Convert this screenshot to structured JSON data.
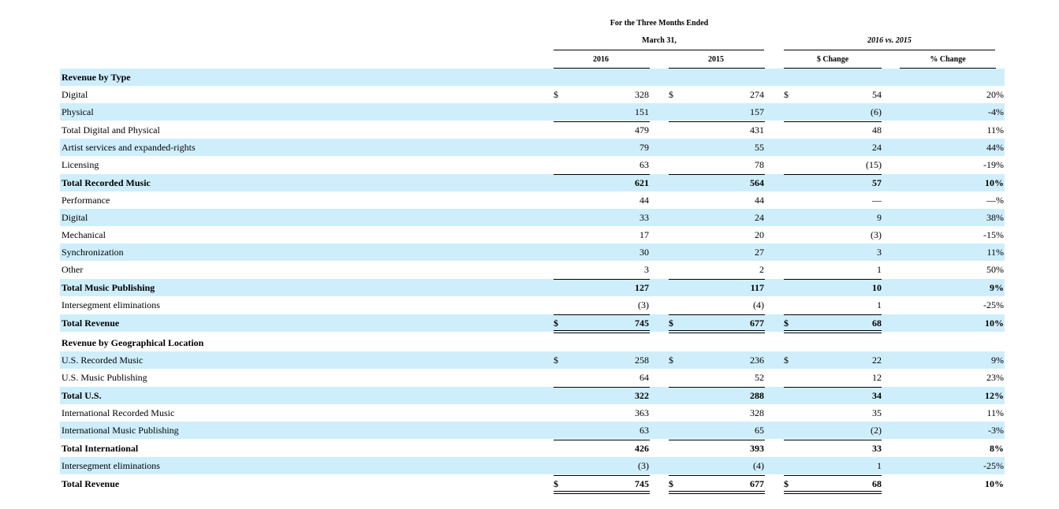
{
  "header": {
    "period_title": "For the Three Months Ended",
    "period_date": "March 31,",
    "comparison_title": "2016 vs. 2015",
    "col_2016": "2016",
    "col_2015": "2015",
    "col_dollar_change": "$ Change",
    "col_pct_change": "% Change"
  },
  "currency_symbol": "$",
  "rows": [
    {
      "label": "Revenue by Type",
      "v2016": "",
      "v2015": "",
      "chg": "",
      "pct": "",
      "bold": true,
      "section": true,
      "shade": true
    },
    {
      "label": "Digital",
      "v2016": "328",
      "v2015": "274",
      "chg": "54",
      "pct": "20%",
      "dollar": true,
      "shade": false
    },
    {
      "label": "Physical",
      "v2016": "151",
      "v2015": "157",
      "chg": "(6)",
      "pct": "-4%",
      "shade": true
    },
    {
      "label": "Total Digital and Physical",
      "v2016": "479",
      "v2015": "431",
      "chg": "48",
      "pct": "11%",
      "shade": false
    },
    {
      "label": "Artist services and expanded-rights",
      "v2016": "79",
      "v2015": "55",
      "chg": "24",
      "pct": "44%",
      "shade": true
    },
    {
      "label": "Licensing",
      "v2016": "63",
      "v2015": "78",
      "chg": "(15)",
      "pct": "-19%",
      "shade": false
    },
    {
      "label": "Total Recorded Music",
      "v2016": "621",
      "v2015": "564",
      "chg": "57",
      "pct": "10%",
      "bold": true,
      "shade": true
    },
    {
      "label": "Performance",
      "v2016": "44",
      "v2015": "44",
      "chg": "—",
      "pct": "—%",
      "shade": false
    },
    {
      "label": "Digital",
      "v2016": "33",
      "v2015": "24",
      "chg": "9",
      "pct": "38%",
      "shade": true
    },
    {
      "label": "Mechanical",
      "v2016": "17",
      "v2015": "20",
      "chg": "(3)",
      "pct": "-15%",
      "shade": false
    },
    {
      "label": "Synchronization",
      "v2016": "30",
      "v2015": "27",
      "chg": "3",
      "pct": "11%",
      "shade": true
    },
    {
      "label": "Other",
      "v2016": "3",
      "v2015": "2",
      "chg": "1",
      "pct": "50%",
      "shade": false
    },
    {
      "label": "Total Music Publishing",
      "v2016": "127",
      "v2015": "117",
      "chg": "10",
      "pct": "9%",
      "bold": true,
      "shade": true
    },
    {
      "label": "Intersegment eliminations",
      "v2016": "(3)",
      "v2015": "(4)",
      "chg": "1",
      "pct": "-25%",
      "shade": false
    },
    {
      "label": "Total Revenue",
      "v2016": "745",
      "v2015": "677",
      "chg": "68",
      "pct": "10%",
      "bold": true,
      "dollar": true,
      "shade": true
    },
    {
      "label": "Revenue by Geographical Location",
      "v2016": "",
      "v2015": "",
      "chg": "",
      "pct": "",
      "bold": true,
      "section": true,
      "shade": false
    },
    {
      "label": "U.S. Recorded Music",
      "v2016": "258",
      "v2015": "236",
      "chg": "22",
      "pct": "9%",
      "dollar": true,
      "shade": true
    },
    {
      "label": "U.S. Music Publishing",
      "v2016": "64",
      "v2015": "52",
      "chg": "12",
      "pct": "23%",
      "shade": false
    },
    {
      "label": "Total U.S.",
      "v2016": "322",
      "v2015": "288",
      "chg": "34",
      "pct": "12%",
      "bold": true,
      "shade": true
    },
    {
      "label": "International Recorded Music",
      "v2016": "363",
      "v2015": "328",
      "chg": "35",
      "pct": "11%",
      "shade": false
    },
    {
      "label": "International Music Publishing",
      "v2016": "63",
      "v2015": "65",
      "chg": "(2)",
      "pct": "-3%",
      "shade": true
    },
    {
      "label": "Total International",
      "v2016": "426",
      "v2015": "393",
      "chg": "33",
      "pct": "8%",
      "bold": true,
      "shade": false
    },
    {
      "label": "Intersegment eliminations",
      "v2016": "(3)",
      "v2015": "(4)",
      "chg": "1",
      "pct": "-25%",
      "shade": true
    },
    {
      "label": "Total Revenue",
      "v2016": "745",
      "v2015": "677",
      "chg": "68",
      "pct": "10%",
      "bold": true,
      "dollar": true,
      "shade": false
    }
  ]
}
